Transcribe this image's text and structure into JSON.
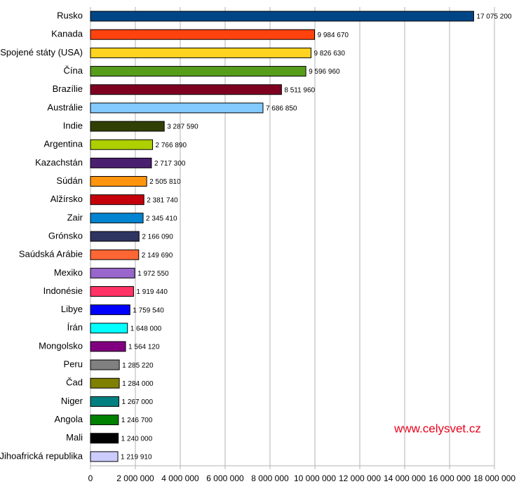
{
  "chart_data": {
    "type": "bar",
    "orientation": "horizontal",
    "categories": [
      "Rusko",
      "Kanada",
      "Spojené státy (USA)",
      "Čína",
      "Brazílie",
      "Austrálie",
      "Indie",
      "Argentina",
      "Kazachstán",
      "Súdán",
      "Alžírsko",
      "Zair",
      "Grónsko",
      "Saúdská Arábie",
      "Mexiko",
      "Indonésie",
      "Libye",
      "Írán",
      "Mongolsko",
      "Peru",
      "Čad",
      "Niger",
      "Angola",
      "Mali",
      "Jihoafrická republika"
    ],
    "values": [
      17075200,
      9984670,
      9826630,
      9596960,
      8511960,
      7686850,
      3287590,
      2766890,
      2717300,
      2505810,
      2381740,
      2345410,
      2166090,
      2149690,
      1972550,
      1919440,
      1759540,
      1648000,
      1564120,
      1285220,
      1284000,
      1267000,
      1246700,
      1240000,
      1219910
    ],
    "value_labels": [
      "17 075 200",
      "9 984 670",
      "9 826 630",
      "9 596 960",
      "8 511 960",
      "7 686 850",
      "3 287 590",
      "2 766 890",
      "2 717 300",
      "2 505 810",
      "2 381 740",
      "2 345 410",
      "2 166 090",
      "2 149 690",
      "1 972 550",
      "1 919 440",
      "1 759 540",
      "1 648 000",
      "1 564 120",
      "1 285 220",
      "1 284 000",
      "1 267 000",
      "1 246 700",
      "1 240 000",
      "1 219 910"
    ],
    "colors": [
      "#004586",
      "#ff420e",
      "#ffd320",
      "#579d1c",
      "#7e0021",
      "#83caff",
      "#314004",
      "#aecf00",
      "#4b1f6f",
      "#ff950e",
      "#c5000b",
      "#0084d1",
      "#2e3561",
      "#ff6633",
      "#9966cc",
      "#ff3366",
      "#0000ff",
      "#00ffff",
      "#800080",
      "#808080",
      "#808000",
      "#008080",
      "#008000",
      "#000000",
      "#ccccff"
    ],
    "xlim": [
      0,
      18000000
    ],
    "xticks": [
      0,
      {
        "value": 2000000,
        "label": "2 000 000"
      },
      {
        "value": 4000000,
        "label": "4 000 000"
      },
      {
        "value": 6000000,
        "label": "6 000 000"
      },
      {
        "value": 8000000,
        "label": "8 000 000"
      },
      {
        "value": 10000000,
        "label": "10 000 000"
      },
      {
        "value": 12000000,
        "label": "12 000 000"
      },
      {
        "value": 14000000,
        "label": "14 000 000"
      },
      {
        "value": 16000000,
        "label": "16 000 000"
      },
      {
        "value": 18000000,
        "label": "18 000 000"
      }
    ],
    "grid": true,
    "annotation": "www.celysvet.cz"
  }
}
